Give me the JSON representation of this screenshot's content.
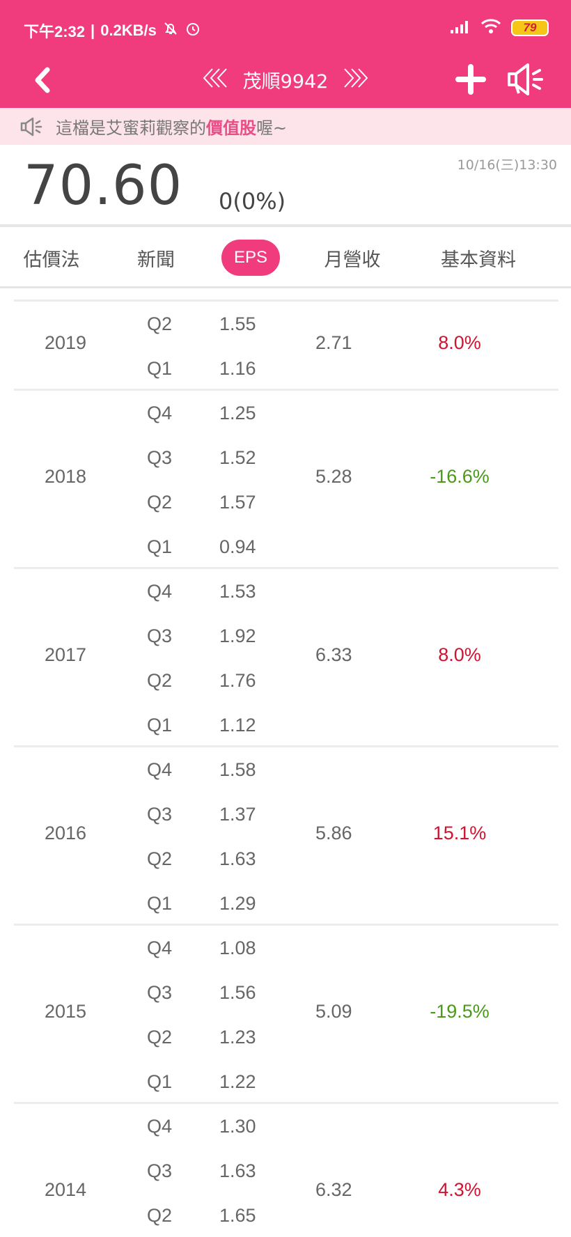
{
  "status_bar": {
    "time": "下午2:32",
    "network_speed": "0.2KB/s",
    "battery": "79",
    "colors": {
      "bar": "#f03c7c"
    }
  },
  "nav": {
    "title": "茂順9942"
  },
  "notice": {
    "prefix": "這檔是艾蜜莉觀察的",
    "highlight": "價值股",
    "suffix": "喔~"
  },
  "quote": {
    "price": "70.60",
    "change": "0(0%)",
    "datetime": "10/16(三)13:30"
  },
  "tabs": [
    {
      "label": "估價法"
    },
    {
      "label": "新聞"
    },
    {
      "label": "EPS"
    },
    {
      "label": "月營收"
    },
    {
      "label": "基本資料"
    }
  ],
  "active_tab": "EPS",
  "eps_table": [
    {
      "year": "2019",
      "quarters": [
        {
          "q": "Q2",
          "eps": "1.55"
        },
        {
          "q": "Q1",
          "eps": "1.16"
        }
      ],
      "total": "2.71",
      "growth": "8.0%",
      "trend": "up"
    },
    {
      "year": "2018",
      "quarters": [
        {
          "q": "Q4",
          "eps": "1.25"
        },
        {
          "q": "Q3",
          "eps": "1.52"
        },
        {
          "q": "Q2",
          "eps": "1.57"
        },
        {
          "q": "Q1",
          "eps": "0.94"
        }
      ],
      "total": "5.28",
      "growth": "-16.6%",
      "trend": "down"
    },
    {
      "year": "2017",
      "quarters": [
        {
          "q": "Q4",
          "eps": "1.53"
        },
        {
          "q": "Q3",
          "eps": "1.92"
        },
        {
          "q": "Q2",
          "eps": "1.76"
        },
        {
          "q": "Q1",
          "eps": "1.12"
        }
      ],
      "total": "6.33",
      "growth": "8.0%",
      "trend": "up"
    },
    {
      "year": "2016",
      "quarters": [
        {
          "q": "Q4",
          "eps": "1.58"
        },
        {
          "q": "Q3",
          "eps": "1.37"
        },
        {
          "q": "Q2",
          "eps": "1.63"
        },
        {
          "q": "Q1",
          "eps": "1.29"
        }
      ],
      "total": "5.86",
      "growth": "15.1%",
      "trend": "up"
    },
    {
      "year": "2015",
      "quarters": [
        {
          "q": "Q4",
          "eps": "1.08"
        },
        {
          "q": "Q3",
          "eps": "1.56"
        },
        {
          "q": "Q2",
          "eps": "1.23"
        },
        {
          "q": "Q1",
          "eps": "1.22"
        }
      ],
      "total": "5.09",
      "growth": "-19.5%",
      "trend": "down"
    },
    {
      "year": "2014",
      "quarters": [
        {
          "q": "Q4",
          "eps": "1.30"
        },
        {
          "q": "Q3",
          "eps": "1.63"
        },
        {
          "q": "Q2",
          "eps": "1.65"
        }
      ],
      "total": "6.32",
      "growth": "4.3%",
      "trend": "up"
    }
  ],
  "icons": {
    "back": "chevron-left-icon",
    "prev": "double-chevron-left-icon",
    "next": "double-chevron-right-icon",
    "add": "plus-icon",
    "speaker": "megaphone-icon"
  }
}
